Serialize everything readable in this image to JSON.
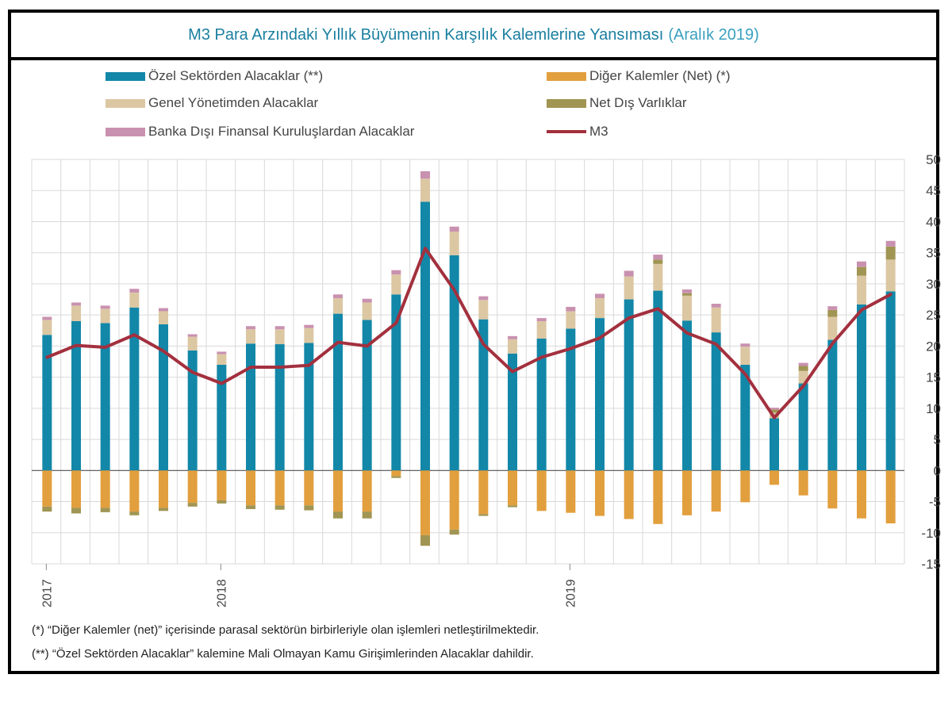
{
  "title": {
    "main": "M3 Para Arzındaki Yıllık Büyümenin Karşılık Kalemlerine Yansıması",
    "sub": "(Aralık 2019)"
  },
  "legend": [
    {
      "key": "ozel",
      "label": "Özel Sektörden Alacaklar (**)"
    },
    {
      "key": "diger",
      "label": "Diğer Kalemler (Net) (*)"
    },
    {
      "key": "genel",
      "label": "Genel Yönetimden Alacaklar"
    },
    {
      "key": "net_dis",
      "label": "Net Dış Varlıklar"
    },
    {
      "key": "banka_disi",
      "label": "Banka Dışı Finansal Kuruluşlardan Alacaklar"
    },
    {
      "key": "m3",
      "label": "M3"
    }
  ],
  "colors": {
    "ozel": "#1287a8",
    "diger": "#e29f3e",
    "genel": "#dcc7a3",
    "net_dis": "#a19553",
    "banka_disi": "#c991b0",
    "m3": "#a3303e",
    "grid": "#d9d9d9"
  },
  "notes": [
    "(*) “Diğer Kalemler (net)” içerisinde parasal sektörün birbirleriyle olan işlemleri netleştirilmektedir.",
    "(**) “Özel Sektörden Alacaklar” kalemine Mali Olmayan Kamu Girişimlerinden Alacaklar dahildir."
  ],
  "chart_data": {
    "type": "bar",
    "stacked": true,
    "ylim": [
      -15,
      50
    ],
    "yticks": [
      50,
      45,
      40,
      35,
      30,
      25,
      20,
      15,
      10,
      5,
      0,
      -5,
      -10,
      -15
    ],
    "y_axis_side": "right",
    "grid": true,
    "year_labels": [
      {
        "label": "2017",
        "index": 0
      },
      {
        "label": "2018",
        "index": 6
      },
      {
        "label": "2019",
        "index": 18
      }
    ],
    "series": [
      {
        "key": "ozel",
        "name": "Özel Sektörden Alacaklar (**)",
        "values": [
          21.8,
          24.0,
          23.7,
          26.2,
          23.5,
          19.3,
          17.0,
          20.4,
          20.3,
          20.5,
          25.2,
          24.2,
          28.3,
          43.2,
          34.6,
          24.3,
          18.8,
          21.2,
          22.8,
          24.5,
          27.5,
          28.9,
          24.1,
          22.2,
          17.0,
          8.4,
          14.0,
          21.0,
          26.7,
          28.8
        ]
      },
      {
        "key": "genel",
        "name": "Genel Yönetimden Alacaklar",
        "values": [
          2.4,
          2.5,
          2.3,
          2.4,
          2.1,
          2.2,
          1.7,
          2.3,
          2.4,
          2.4,
          2.5,
          2.8,
          3.2,
          3.7,
          3.8,
          3.1,
          2.3,
          2.8,
          2.8,
          3.2,
          3.7,
          4.3,
          4.0,
          4.0,
          2.9,
          0.9,
          2.0,
          3.7,
          4.6,
          5.1
        ]
      },
      {
        "key": "net_dis",
        "name": "Net Dış Varlıklar",
        "values": [
          0.0,
          0.0,
          0.0,
          0.0,
          0.0,
          0.0,
          0.0,
          0.0,
          0.0,
          0.0,
          0.0,
          0.0,
          0.0,
          0.0,
          0.0,
          0.0,
          0.0,
          0.0,
          0.0,
          0.0,
          0.0,
          0.7,
          0.4,
          0.0,
          0.0,
          0.5,
          0.8,
          1.1,
          1.4,
          2.1
        ]
      },
      {
        "key": "banka_disi",
        "name": "Banka Dışı Finansal Kuruluşlardan Alacaklar",
        "values": [
          0.5,
          0.5,
          0.5,
          0.6,
          0.5,
          0.4,
          0.4,
          0.5,
          0.5,
          0.5,
          0.6,
          0.6,
          0.7,
          1.2,
          0.8,
          0.6,
          0.5,
          0.5,
          0.7,
          0.7,
          0.9,
          0.8,
          0.6,
          0.6,
          0.5,
          0.3,
          0.5,
          0.6,
          0.9,
          0.9
        ]
      },
      {
        "key": "diger",
        "name": "Diğer Kalemler (Net) (*)",
        "values": [
          -5.8,
          -6.0,
          -6.0,
          -6.6,
          -6.0,
          -5.2,
          -4.8,
          -5.6,
          -5.6,
          -5.6,
          -6.6,
          -6.6,
          -0.9,
          -10.4,
          -9.5,
          -7.0,
          -5.6,
          -6.5,
          -6.8,
          -7.3,
          -7.8,
          -8.6,
          -7.2,
          -6.6,
          -5.1,
          -2.3,
          -4.0,
          -6.1,
          -7.7,
          -8.5
        ]
      },
      {
        "key": "net_dis_neg",
        "name": "Net Dış Varlıklar",
        "values": [
          -0.8,
          -0.9,
          -0.7,
          -0.6,
          -0.5,
          -0.6,
          -0.5,
          -0.6,
          -0.7,
          -0.8,
          -1.1,
          -1.1,
          -0.3,
          -1.7,
          -0.8,
          -0.3,
          -0.3,
          0.0,
          0.0,
          0.0,
          0.0,
          0.0,
          0.0,
          0.0,
          0.0,
          0.0,
          0.0,
          0.0,
          0.0,
          0.0
        ]
      }
    ],
    "line": {
      "key": "m3",
      "name": "M3",
      "values": [
        18.2,
        20.1,
        19.8,
        21.8,
        19.2,
        15.8,
        14.0,
        16.6,
        16.6,
        16.9,
        20.6,
        20.0,
        23.7,
        35.7,
        29.0,
        20.3,
        15.9,
        18.2,
        19.6,
        21.3,
        24.5,
        26.0,
        22.1,
        20.3,
        15.5,
        8.5,
        13.6,
        20.4,
        25.8,
        28.3
      ]
    }
  }
}
